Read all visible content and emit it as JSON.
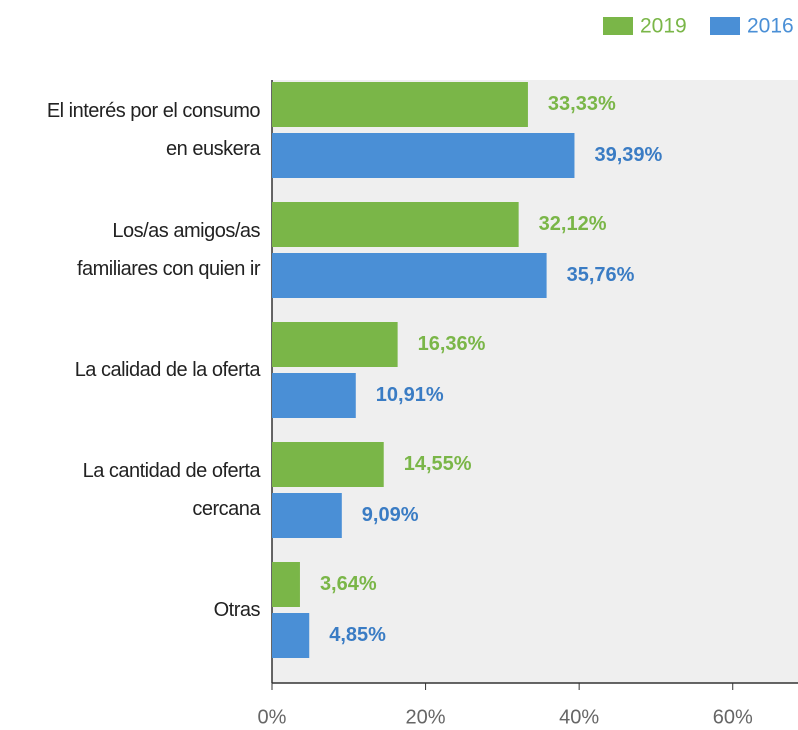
{
  "chart_data": {
    "type": "bar",
    "orientation": "horizontal",
    "categories": [
      "El interés por el consumo\nen euskera",
      "Los/as amigos/as\nfamiliares con quien ir",
      "La calidad de la oferta",
      "La cantidad de oferta\ncercana",
      "Otras"
    ],
    "series": [
      {
        "name": "2019",
        "color": "#7ab648",
        "values": [
          33.33,
          32.12,
          16.36,
          14.55,
          3.64
        ],
        "value_labels": [
          "33,33%",
          "32,12%",
          "16,36%",
          "14,55%",
          "3,64%"
        ]
      },
      {
        "name": "2016",
        "color": "#4a8fd6",
        "values": [
          39.39,
          35.76,
          10.91,
          9.09,
          4.85
        ],
        "value_labels": [
          "39,39%",
          "35,76%",
          "10,91%",
          "9,09%",
          "4,85%"
        ]
      }
    ],
    "xlim": [
      0,
      68.5
    ],
    "xticks": [
      {
        "value": 0,
        "label": "0%"
      },
      {
        "value": 20,
        "label": "20%"
      },
      {
        "value": 40,
        "label": "40%"
      },
      {
        "value": 60,
        "label": "60%"
      }
    ],
    "legend": "top-right"
  }
}
